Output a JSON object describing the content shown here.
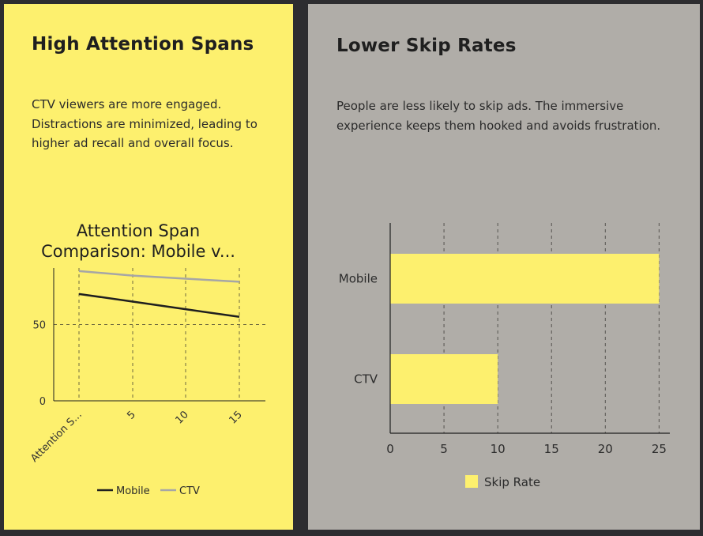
{
  "cards": [
    {
      "title": "High Attention Spans",
      "body": "CTV viewers are more engaged. Distractions are minimized, leading to higher ad recall and overall focus.",
      "background": "#fdf06e"
    },
    {
      "title": "Lower Skip Rates",
      "body": "People are less likely to skip ads. The immersive experience keeps them hooked and avoids frustration.",
      "background": "#b0ada8"
    }
  ],
  "chart_data": [
    {
      "type": "line",
      "title_lines": [
        "Attention Span",
        "Comparison: Mobile v..."
      ],
      "x": [
        "Attention S...",
        "5",
        "10",
        "15"
      ],
      "ylim": [
        0,
        87
      ],
      "yticks": [
        0,
        50
      ],
      "grid": true,
      "legend_position": "bottom",
      "series": [
        {
          "name": "Mobile",
          "values": [
            70,
            65,
            60,
            55
          ],
          "color": "#1f1f1f"
        },
        {
          "name": "CTV",
          "values": [
            85,
            82,
            80,
            78
          ],
          "color": "#a6a6a6"
        }
      ]
    },
    {
      "type": "bar",
      "orientation": "horizontal",
      "categories": [
        "Mobile",
        "CTV"
      ],
      "xlim": [
        0,
        26
      ],
      "xticks": [
        0,
        5,
        10,
        15,
        20,
        25
      ],
      "grid": true,
      "legend_position": "bottom",
      "series": [
        {
          "name": "Skip Rate",
          "values": [
            25,
            10
          ],
          "color": "#fdf06e"
        }
      ]
    }
  ]
}
